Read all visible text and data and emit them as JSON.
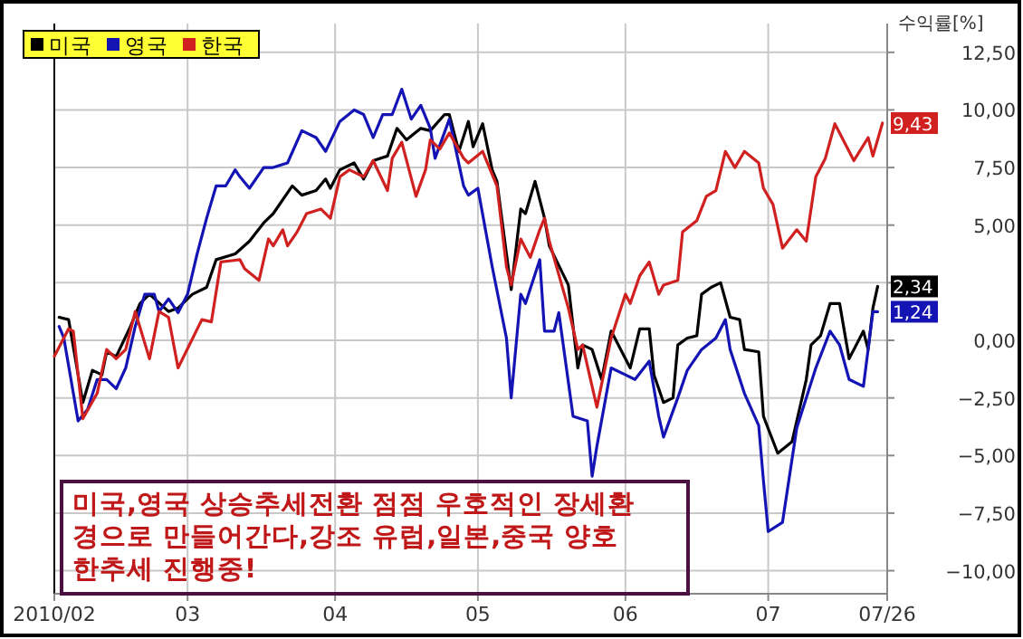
{
  "chart_data": {
    "type": "line",
    "ylabel": "수익률[%]",
    "xlim": [
      "2010-02-01",
      "2010-07-26"
    ],
    "xticks": [
      {
        "value": "2010-02-01",
        "label": "2010/02"
      },
      {
        "value": "2010-03-01",
        "label": "03"
      },
      {
        "value": "2010-04-01",
        "label": "04"
      },
      {
        "value": "2010-05-01",
        "label": "05"
      },
      {
        "value": "2010-06-01",
        "label": "06"
      },
      {
        "value": "2010-07-01",
        "label": "07"
      },
      {
        "value": "2010-07-26",
        "label": "07/26"
      }
    ],
    "ylim": [
      -11,
      13.75
    ],
    "yticks": [
      {
        "value": 12.5,
        "label": "12,50"
      },
      {
        "value": 10,
        "label": "10,00"
      },
      {
        "value": 7.5,
        "label": "7,50"
      },
      {
        "value": 5,
        "label": "5,00"
      },
      {
        "value": 2.5,
        "label": null
      },
      {
        "value": 0,
        "label": "0,00"
      },
      {
        "value": -2.5,
        "label": "−2,50"
      },
      {
        "value": -5,
        "label": "−5,00"
      },
      {
        "value": -7.5,
        "label": "−7,50"
      },
      {
        "value": -10,
        "label": "−10,00"
      }
    ],
    "grid": true,
    "legend": "top left",
    "marker": "none",
    "line_style": "solid",
    "annotations": [
      "미국,영국 상승추세전환 점점 우호적인 장세환\n경으로 만들어간다,강조  유럽,일본,중국 양호\n한추세 진행중!"
    ],
    "series": [
      {
        "name": "미국",
        "color": "#000000",
        "x": [
          "2010-02-02",
          "2010-02-04",
          "2010-02-07",
          "2010-02-09",
          "2010-02-11",
          "2010-02-12",
          "2010-02-14",
          "2010-02-17",
          "2010-02-19",
          "2010-02-21",
          "2010-02-25",
          "2010-02-27",
          "2010-03-02",
          "2010-03-05",
          "2010-03-07",
          "2010-03-11",
          "2010-03-14",
          "2010-03-17",
          "2010-03-19",
          "2010-03-23",
          "2010-03-25",
          "2010-03-28",
          "2010-03-30",
          "2010-03-31",
          "2010-04-02",
          "2010-04-05",
          "2010-04-07",
          "2010-04-09",
          "2010-04-12",
          "2010-04-14",
          "2010-04-16",
          "2010-04-19",
          "2010-04-21",
          "2010-04-24",
          "2010-04-25",
          "2010-04-27",
          "2010-04-29",
          "2010-04-30",
          "2010-05-02",
          "2010-05-04",
          "2010-05-05",
          "2010-05-07",
          "2010-05-08",
          "2010-05-10",
          "2010-05-11",
          "2010-05-13",
          "2010-05-15",
          "2010-05-16",
          "2010-05-20",
          "2010-05-22",
          "2010-05-23",
          "2010-05-25",
          "2010-05-27",
          "2010-05-29",
          "2010-06-02",
          "2010-06-04",
          "2010-06-06",
          "2010-06-07",
          "2010-06-09",
          "2010-06-11",
          "2010-06-12",
          "2010-06-14",
          "2010-06-16",
          "2010-06-17",
          "2010-06-19",
          "2010-06-21",
          "2010-06-23",
          "2010-06-25",
          "2010-06-26",
          "2010-06-29",
          "2010-06-30",
          "2010-07-03",
          "2010-07-06",
          "2010-07-09",
          "2010-07-10",
          "2010-07-12",
          "2010-07-14",
          "2010-07-16",
          "2010-07-18",
          "2010-07-21",
          "2010-07-22",
          "2010-07-23",
          "2010-07-24"
        ],
        "values": [
          1.0,
          0.9,
          -2.7,
          -1.3,
          -1.5,
          -0.5,
          -0.7,
          0.6,
          1.6,
          2.0,
          1.25,
          1.4,
          2.0,
          2.3,
          3.5,
          3.75,
          4.3,
          5.1,
          5.5,
          6.7,
          6.3,
          6.5,
          7.0,
          6.6,
          7.4,
          7.7,
          7.0,
          7.8,
          8.0,
          9.2,
          8.7,
          9.2,
          9.1,
          9.8,
          9.8,
          8.2,
          9.5,
          8.4,
          9.4,
          7.4,
          6.9,
          3.75,
          2.2,
          5.7,
          5.5,
          6.9,
          5.3,
          4.1,
          2.4,
          -1.2,
          -0.2,
          -0.4,
          -1.7,
          0.4,
          -1.2,
          0.5,
          0.5,
          -1.5,
          -2.7,
          -2.5,
          -0.2,
          0.1,
          0.2,
          2.0,
          2.3,
          2.5,
          1.0,
          0.9,
          -0.4,
          -0.5,
          -3.3,
          -4.9,
          -4.4,
          -1.7,
          -0.2,
          0.2,
          1.6,
          1.6,
          -0.8,
          0.4,
          -0.4,
          1.4,
          2.34
        ],
        "value_labels": [
          null,
          null,
          null,
          null,
          null,
          null,
          null,
          null,
          null,
          null,
          null,
          null,
          null,
          null,
          null,
          null,
          null,
          null,
          null,
          null,
          null,
          null,
          null,
          null,
          null,
          null,
          null,
          null,
          null,
          null,
          null,
          null,
          null,
          null,
          null,
          null,
          null,
          null,
          null,
          null,
          null,
          null,
          null,
          null,
          null,
          null,
          null,
          null,
          null,
          null,
          null,
          null,
          null,
          null,
          null,
          null,
          null,
          null,
          null,
          null,
          null,
          null,
          null,
          null,
          null,
          null,
          null,
          null,
          null,
          null,
          null,
          null,
          null,
          null,
          null,
          null,
          null,
          null,
          null,
          null,
          null,
          null,
          "2,34"
        ]
      },
      {
        "name": "영국",
        "color": "#1414b4",
        "x": [
          "2010-02-02",
          "2010-02-03",
          "2010-02-06",
          "2010-02-08",
          "2010-02-10",
          "2010-02-12",
          "2010-02-14",
          "2010-02-16",
          "2010-02-18",
          "2010-02-20",
          "2010-02-22",
          "2010-02-23",
          "2010-02-25",
          "2010-02-27",
          "2010-03-01",
          "2010-03-03",
          "2010-03-05",
          "2010-03-07",
          "2010-03-09",
          "2010-03-11",
          "2010-03-12",
          "2010-03-14",
          "2010-03-17",
          "2010-03-19",
          "2010-03-22",
          "2010-03-25",
          "2010-03-28",
          "2010-03-30",
          "2010-04-02",
          "2010-04-05",
          "2010-04-07",
          "2010-04-09",
          "2010-04-11",
          "2010-04-13",
          "2010-04-15",
          "2010-04-17",
          "2010-04-19",
          "2010-04-21",
          "2010-04-22",
          "2010-04-25",
          "2010-04-28",
          "2010-04-29",
          "2010-05-01",
          "2010-05-04",
          "2010-05-07",
          "2010-05-08",
          "2010-05-10",
          "2010-05-11",
          "2010-05-14",
          "2010-05-15",
          "2010-05-17",
          "2010-05-18",
          "2010-05-21",
          "2010-05-24",
          "2010-05-25",
          "2010-05-26",
          "2010-05-29",
          "2010-06-01",
          "2010-06-03",
          "2010-06-06",
          "2010-06-08",
          "2010-06-09",
          "2010-06-12",
          "2010-06-14",
          "2010-06-17",
          "2010-06-20",
          "2010-06-22",
          "2010-06-23",
          "2010-06-26",
          "2010-06-29",
          "2010-06-30",
          "2010-07-01",
          "2010-07-04",
          "2010-07-07",
          "2010-07-09",
          "2010-07-11",
          "2010-07-14",
          "2010-07-16",
          "2010-07-18",
          "2010-07-21",
          "2010-07-23",
          "2010-07-24"
        ],
        "values": [
          0.6,
          0.1,
          -3.5,
          -3.0,
          -1.7,
          -1.7,
          -2.1,
          -1.2,
          0.6,
          2.0,
          2.0,
          1.25,
          1.8,
          1.2,
          2.0,
          3.75,
          5.3,
          6.7,
          6.7,
          7.4,
          7.1,
          6.6,
          7.5,
          7.5,
          7.7,
          9.1,
          8.8,
          8.2,
          9.5,
          10.0,
          9.8,
          8.8,
          9.8,
          9.8,
          10.9,
          9.6,
          10.2,
          9.2,
          7.9,
          9.6,
          6.7,
          6.3,
          6.6,
          3.2,
          0.1,
          -2.5,
          2.0,
          1.6,
          3.5,
          0.4,
          0.4,
          1.2,
          -3.3,
          -3.5,
          -5.9,
          -4.6,
          -1.2,
          -1.5,
          -1.7,
          -0.9,
          -3.3,
          -4.2,
          -2.5,
          -1.3,
          -0.4,
          0.1,
          0.9,
          -0.4,
          -2.3,
          -3.7,
          -6.1,
          -8.3,
          -7.9,
          -3.8,
          -2.5,
          -1.2,
          0.4,
          -0.2,
          -1.7,
          -2.0,
          1.24,
          1.24
        ],
        "value_labels": [
          null,
          null,
          null,
          null,
          null,
          null,
          null,
          null,
          null,
          null,
          null,
          null,
          null,
          null,
          null,
          null,
          null,
          null,
          null,
          null,
          null,
          null,
          null,
          null,
          null,
          null,
          null,
          null,
          null,
          null,
          null,
          null,
          null,
          null,
          null,
          null,
          null,
          null,
          null,
          null,
          null,
          null,
          null,
          null,
          null,
          null,
          null,
          null,
          null,
          null,
          null,
          null,
          null,
          null,
          null,
          null,
          null,
          null,
          null,
          null,
          null,
          null,
          null,
          null,
          null,
          null,
          null,
          null,
          null,
          null,
          null,
          null,
          null,
          null,
          null,
          null,
          null,
          null,
          null,
          null,
          null,
          "1,24"
        ]
      },
      {
        "name": "한국",
        "color": "#d02020",
        "x": [
          "2010-02-01",
          "2010-02-04",
          "2010-02-05",
          "2010-02-07",
          "2010-02-10",
          "2010-02-12",
          "2010-02-14",
          "2010-02-16",
          "2010-02-18",
          "2010-02-21",
          "2010-02-23",
          "2010-02-25",
          "2010-02-27",
          "2010-03-04",
          "2010-03-06",
          "2010-03-08",
          "2010-03-12",
          "2010-03-13",
          "2010-03-16",
          "2010-03-18",
          "2010-03-19",
          "2010-03-21",
          "2010-03-22",
          "2010-03-24",
          "2010-03-26",
          "2010-03-29",
          "2010-03-31",
          "2010-04-02",
          "2010-04-04",
          "2010-04-07",
          "2010-04-09",
          "2010-04-12",
          "2010-04-13",
          "2010-04-15",
          "2010-04-18",
          "2010-04-20",
          "2010-04-21",
          "2010-04-23",
          "2010-04-25",
          "2010-04-28",
          "2010-04-29",
          "2010-05-02",
          "2010-05-05",
          "2010-05-07",
          "2010-05-08",
          "2010-05-10",
          "2010-05-12",
          "2010-05-14",
          "2010-05-15",
          "2010-05-16",
          "2010-05-20",
          "2010-05-22",
          "2010-05-23",
          "2010-05-26",
          "2010-05-29",
          "2010-06-01",
          "2010-06-02",
          "2010-06-04",
          "2010-06-06",
          "2010-06-08",
          "2010-06-09",
          "2010-06-12",
          "2010-06-13",
          "2010-06-16",
          "2010-06-18",
          "2010-06-20",
          "2010-06-22",
          "2010-06-24",
          "2010-06-26",
          "2010-06-29",
          "2010-06-30",
          "2010-07-02",
          "2010-07-04",
          "2010-07-07",
          "2010-07-09",
          "2010-07-11",
          "2010-07-13",
          "2010-07-15",
          "2010-07-19",
          "2010-07-22",
          "2010-07-23",
          "2010-07-25"
        ],
        "values": [
          -0.7,
          0.5,
          0.4,
          -3.4,
          -2.3,
          -0.4,
          -0.8,
          -0.4,
          1.25,
          -0.8,
          1.25,
          1.0,
          -1.2,
          0.9,
          0.8,
          3.4,
          3.5,
          3.1,
          2.6,
          4.4,
          4.1,
          4.8,
          4.1,
          4.7,
          5.5,
          5.7,
          5.3,
          7.1,
          7.4,
          7.1,
          7.8,
          6.5,
          7.9,
          8.6,
          6.25,
          7.4,
          8.7,
          8.3,
          9.0,
          7.9,
          7.7,
          8.2,
          6.7,
          3.2,
          2.4,
          4.4,
          3.6,
          4.8,
          5.3,
          4.3,
          1.4,
          -0.4,
          -0.2,
          -2.9,
          0.1,
          2.0,
          1.6,
          2.8,
          3.4,
          2.0,
          2.4,
          2.6,
          4.7,
          5.2,
          6.25,
          6.5,
          8.2,
          7.5,
          8.2,
          7.7,
          6.6,
          5.9,
          4.0,
          4.8,
          4.3,
          7.1,
          7.9,
          9.4,
          7.8,
          8.8,
          8.0,
          9.43
        ],
        "value_labels": [
          null,
          null,
          null,
          null,
          null,
          null,
          null,
          null,
          null,
          null,
          null,
          null,
          null,
          null,
          null,
          null,
          null,
          null,
          null,
          null,
          null,
          null,
          null,
          null,
          null,
          null,
          null,
          null,
          null,
          null,
          null,
          null,
          null,
          null,
          null,
          null,
          null,
          null,
          null,
          null,
          null,
          null,
          null,
          null,
          null,
          null,
          null,
          null,
          null,
          null,
          null,
          null,
          null,
          null,
          null,
          null,
          null,
          null,
          null,
          null,
          null,
          null,
          null,
          null,
          null,
          null,
          null,
          null,
          null,
          null,
          null,
          null,
          null,
          null,
          null,
          null,
          null,
          null,
          null,
          null,
          null,
          "9,43"
        ]
      }
    ]
  }
}
